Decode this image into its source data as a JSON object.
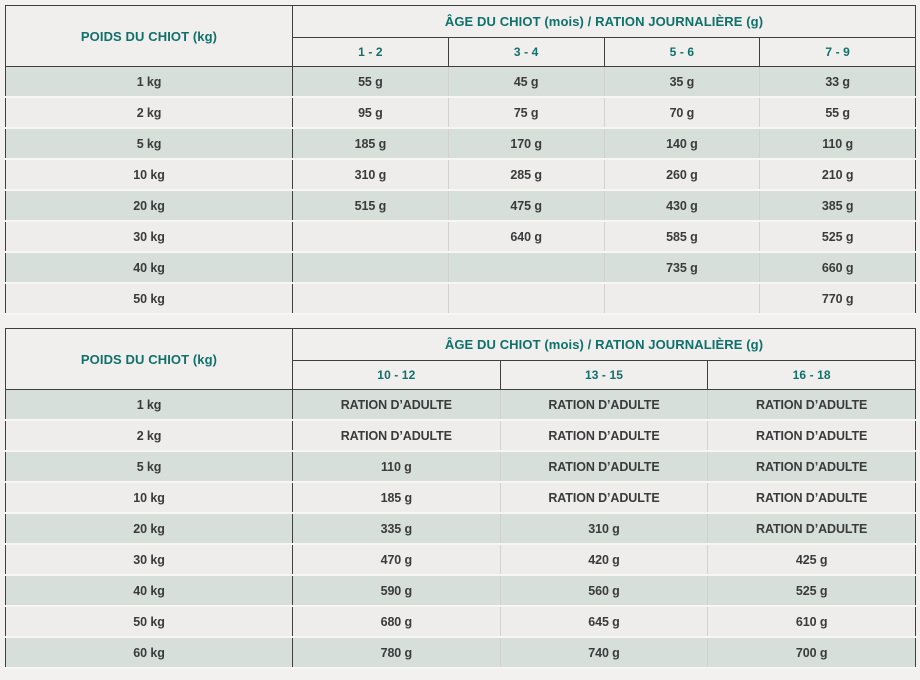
{
  "colors": {
    "teal_header_text": "#10706a",
    "row_green": "#d6dfda",
    "row_light": "#eeedeb",
    "header_bg": "#f0efed",
    "page_bg": "#f2f1ef",
    "border_dark": "#3f3f3f",
    "border_light": "#d1d1cf",
    "data_text": "#3b3b3b"
  },
  "tables": [
    {
      "weight_header": "POIDS DU CHIOT (kg)",
      "age_header": "ÂGE DU CHIOT (mois) / RATION JOURNALIÈRE (g)",
      "age_columns": [
        "1 - 2",
        "3 - 4",
        "5 - 6",
        "7 - 9"
      ],
      "rows": [
        {
          "weight": "1 kg",
          "values": [
            "55 g",
            "45 g",
            "35 g",
            "33 g"
          ]
        },
        {
          "weight": "2 kg",
          "values": [
            "95 g",
            "75 g",
            "70 g",
            "55 g"
          ]
        },
        {
          "weight": "5 kg",
          "values": [
            "185 g",
            "170 g",
            "140 g",
            "110 g"
          ]
        },
        {
          "weight": "10 kg",
          "values": [
            "310 g",
            "285 g",
            "260 g",
            "210 g"
          ]
        },
        {
          "weight": "20 kg",
          "values": [
            "515 g",
            "475 g",
            "430 g",
            "385 g"
          ]
        },
        {
          "weight": "30 kg",
          "values": [
            "",
            "640 g",
            "585 g",
            "525 g"
          ]
        },
        {
          "weight": "40 kg",
          "values": [
            "",
            "",
            "735 g",
            "660 g"
          ]
        },
        {
          "weight": "50 kg",
          "values": [
            "",
            "",
            "",
            "770 g"
          ]
        }
      ]
    },
    {
      "weight_header": "POIDS DU CHIOT (kg)",
      "age_header": "ÂGE DU CHIOT (mois) / RATION JOURNALIÈRE (g)",
      "age_columns": [
        "10 - 12",
        "13 - 15",
        "16 - 18"
      ],
      "rows": [
        {
          "weight": "1 kg",
          "values": [
            "RATION D’ADULTE",
            "RATION D’ADULTE",
            "RATION D’ADULTE"
          ]
        },
        {
          "weight": "2 kg",
          "values": [
            "RATION D’ADULTE",
            "RATION D’ADULTE",
            "RATION D’ADULTE"
          ]
        },
        {
          "weight": "5 kg",
          "values": [
            "110 g",
            "RATION D’ADULTE",
            "RATION D’ADULTE"
          ]
        },
        {
          "weight": "10 kg",
          "values": [
            "185 g",
            "RATION D’ADULTE",
            "RATION D’ADULTE"
          ]
        },
        {
          "weight": "20 kg",
          "values": [
            "335 g",
            "310 g",
            "RATION D’ADULTE"
          ]
        },
        {
          "weight": "30 kg",
          "values": [
            "470 g",
            "420 g",
            "425 g"
          ]
        },
        {
          "weight": "40 kg",
          "values": [
            "590 g",
            "560 g",
            "525 g"
          ]
        },
        {
          "weight": "50 kg",
          "values": [
            "680 g",
            "645 g",
            "610 g"
          ]
        },
        {
          "weight": "60 kg",
          "values": [
            "780 g",
            "740 g",
            "700 g"
          ]
        }
      ]
    }
  ]
}
